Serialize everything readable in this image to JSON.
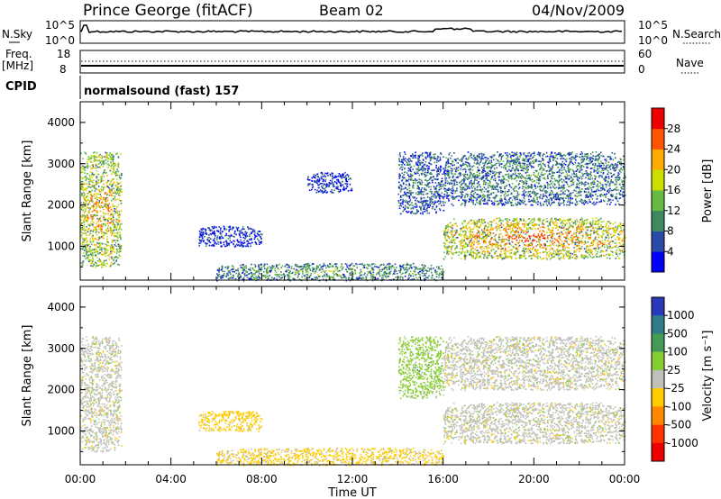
{
  "header": {
    "station": "Prince George (fitACF)",
    "beam": "Beam 02",
    "date": "04/Nov/2009"
  },
  "strip_sky": {
    "left_label": "N.Sky",
    "right_label": "N.Search",
    "left_ticks": [
      "10^5",
      "10^0"
    ],
    "right_ticks": [
      "10^5",
      "10^0"
    ]
  },
  "strip_freq": {
    "left_label_top": "Freq.",
    "left_label_unit": "[MHz]",
    "right_label": "Nave",
    "left_ticks": [
      "18",
      "8"
    ],
    "right_ticks": [
      "60",
      "0"
    ]
  },
  "cpid": {
    "label": "CPID",
    "value": "normalsound (fast) 157"
  },
  "power_panel": {
    "ylabel": "Slant Range [km]",
    "yticks": [
      "1000",
      "2000",
      "3000",
      "4000"
    ],
    "colorbar_label": "Power [dB]",
    "colorbar_ticks": [
      "4",
      "8",
      "12",
      "16",
      "20",
      "24",
      "28"
    ],
    "colorbar_colors": [
      "#0000ff",
      "#2a4aa8",
      "#3d8a5e",
      "#66bb44",
      "#ccdd00",
      "#ffaa00",
      "#ff5500",
      "#ee0000"
    ]
  },
  "velocity_panel": {
    "ylabel": "Slant Range [km]",
    "yticks": [
      "1000",
      "2000",
      "3000",
      "4000"
    ],
    "colorbar_label": "Velocity [m s⁻¹]",
    "colorbar_ticks": [
      "1000",
      "500",
      "100",
      "25",
      "-25",
      "-100",
      "-500",
      "-1000"
    ],
    "colorbar_colors": [
      "#2838b8",
      "#307a8a",
      "#449b55",
      "#88cc33",
      "#c0c0b8",
      "#ffcc00",
      "#ff8800",
      "#ff3300",
      "#ee0000"
    ]
  },
  "xaxis": {
    "label": "Time UT",
    "ticks": [
      "00:00",
      "04:00",
      "08:00",
      "12:00",
      "16:00",
      "20:00",
      "00:00"
    ]
  },
  "chart_data": [
    {
      "type": "heatmap",
      "title": "Power",
      "xlabel": "Time UT",
      "ylabel": "Slant Range [km]",
      "xlim": [
        0,
        24
      ],
      "ylim": [
        180,
        4500
      ],
      "colorbar": {
        "label": "Power [dB]",
        "range": [
          0,
          32
        ]
      },
      "regions": [
        {
          "t": [
            0.0,
            1.8
          ],
          "r": [
            500,
            3300
          ],
          "power": 24
        },
        {
          "t": [
            5.2,
            8.0
          ],
          "r": [
            1000,
            1500
          ],
          "power": 6
        },
        {
          "t": [
            6.0,
            16.0
          ],
          "r": [
            180,
            600
          ],
          "power": 14
        },
        {
          "t": [
            10.0,
            12.0
          ],
          "r": [
            2300,
            2800
          ],
          "power": 6
        },
        {
          "t": [
            14.0,
            16.0
          ],
          "r": [
            1800,
            3300
          ],
          "power": 10
        },
        {
          "t": [
            16.0,
            24.0
          ],
          "r": [
            700,
            1700
          ],
          "power": 26
        },
        {
          "t": [
            16.0,
            24.0
          ],
          "r": [
            2000,
            3300
          ],
          "power": 12
        }
      ]
    },
    {
      "type": "heatmap",
      "title": "Velocity",
      "xlabel": "Time UT",
      "ylabel": "Slant Range [km]",
      "xlim": [
        0,
        24
      ],
      "ylim": [
        180,
        4500
      ],
      "colorbar": {
        "label": "Velocity [m s⁻¹]",
        "range": [
          -1000,
          1000
        ]
      },
      "regions": [
        {
          "t": [
            0.0,
            1.8
          ],
          "r": [
            500,
            3300
          ],
          "velocity": 0
        },
        {
          "t": [
            5.2,
            8.0
          ],
          "r": [
            1000,
            1500
          ],
          "velocity": -80
        },
        {
          "t": [
            6.0,
            16.0
          ],
          "r": [
            180,
            600
          ],
          "velocity": -60
        },
        {
          "t": [
            14.0,
            16.0
          ],
          "r": [
            1800,
            3300
          ],
          "velocity": 80
        },
        {
          "t": [
            16.0,
            24.0
          ],
          "r": [
            700,
            1700
          ],
          "velocity": 0
        },
        {
          "t": [
            16.0,
            24.0
          ],
          "r": [
            2000,
            3300
          ],
          "velocity": 0
        }
      ]
    }
  ]
}
